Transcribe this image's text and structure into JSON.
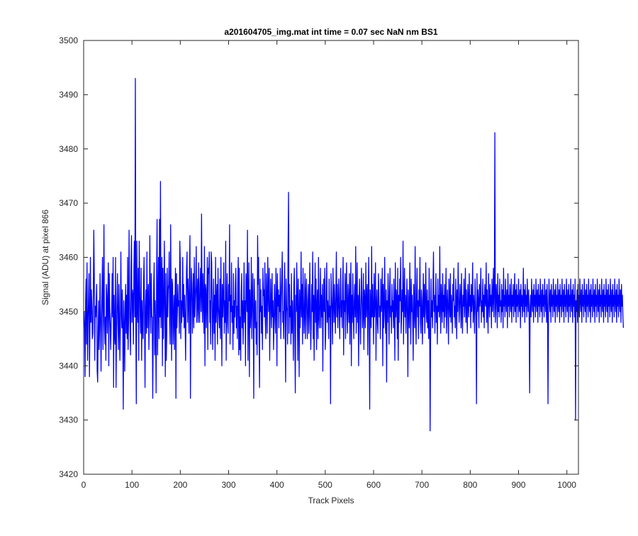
{
  "chart_data": {
    "type": "line",
    "title": "a201604705_img.mat int time = 0.07 sec  NaN nm BS1",
    "xlabel": "Track Pixels",
    "ylabel": "Signal (ADU) at pixel 866",
    "xlim": [
      0,
      1024
    ],
    "ylim": [
      3420,
      3500
    ],
    "xticks": [
      0,
      100,
      200,
      300,
      400,
      500,
      600,
      700,
      800,
      900,
      1000
    ],
    "yticks": [
      3420,
      3430,
      3440,
      3450,
      3460,
      3470,
      3480,
      3490,
      3500
    ],
    "grid": false,
    "legend": "none",
    "series": [
      {
        "color": "#0000ff",
        "x_start": 1,
        "values": [
          3450,
          3447,
          3438,
          3452,
          3456,
          3444,
          3459,
          3441,
          3448,
          3452,
          3457,
          3438,
          3447,
          3460,
          3448,
          3454,
          3451,
          3445,
          3446,
          3453,
          3465,
          3457,
          3441,
          3451,
          3449,
          3452,
          3455,
          3439,
          3437,
          3446,
          3452,
          3443,
          3447,
          3457,
          3449,
          3439,
          3448,
          3454,
          3460,
          3443,
          3451,
          3466,
          3448,
          3444,
          3449,
          3441,
          3455,
          3453,
          3446,
          3452,
          3459,
          3440,
          3457,
          3451,
          3447,
          3443,
          3448,
          3450,
          3457,
          3449,
          3460,
          3436,
          3453,
          3446,
          3444,
          3460,
          3436,
          3445,
          3452,
          3457,
          3448,
          3443,
          3455,
          3449,
          3441,
          3447,
          3461,
          3450,
          3447,
          3454,
          3446,
          3432,
          3452,
          3447,
          3439,
          3451,
          3455,
          3446,
          3453,
          3445,
          3460,
          3443,
          3448,
          3465,
          3452,
          3447,
          3442,
          3458,
          3464,
          3448,
          3454,
          3453,
          3444,
          3458,
          3463,
          3449,
          3493,
          3447,
          3433,
          3463,
          3451,
          3448,
          3458,
          3441,
          3463,
          3455,
          3449,
          3446,
          3458,
          3441,
          3452,
          3447,
          3445,
          3455,
          3460,
          3449,
          3436,
          3451,
          3454,
          3446,
          3461,
          3447,
          3452,
          3455,
          3443,
          3449,
          3464,
          3452,
          3446,
          3457,
          3449,
          3449,
          3434,
          3446,
          3455,
          3459,
          3442,
          3452,
          3447,
          3435,
          3457,
          3467,
          3442,
          3452,
          3460,
          3445,
          3467,
          3449,
          3474,
          3447,
          3453,
          3460,
          3440,
          3458,
          3445,
          3451,
          3463,
          3451,
          3438,
          3457,
          3441,
          3446,
          3458,
          3449,
          3454,
          3455,
          3461,
          3448,
          3444,
          3466,
          3452,
          3441,
          3456,
          3455,
          3444,
          3449,
          3453,
          3443,
          3451,
          3458,
          3434,
          3457,
          3447,
          3450,
          3455,
          3451,
          3452,
          3446,
          3463,
          3459,
          3445,
          3452,
          3448,
          3451,
          3460,
          3449,
          3455,
          3447,
          3453,
          3448,
          3441,
          3452,
          3458,
          3461,
          3448,
          3456,
          3452,
          3446,
          3458,
          3464,
          3434,
          3450,
          3458,
          3455,
          3446,
          3451,
          3457,
          3447,
          3460,
          3449,
          3452,
          3455,
          3462,
          3448,
          3452,
          3456,
          3448,
          3459,
          3451,
          3448,
          3455,
          3458,
          3450,
          3468,
          3453,
          3448,
          3457,
          3452,
          3446,
          3462,
          3440,
          3455,
          3454,
          3447,
          3453,
          3460,
          3443,
          3458,
          3457,
          3461,
          3448,
          3452,
          3444,
          3461,
          3459,
          3450,
          3443,
          3451,
          3456,
          3446,
          3453,
          3441,
          3460,
          3448,
          3452,
          3455,
          3444,
          3458,
          3451,
          3449,
          3447,
          3456,
          3445,
          3460,
          3451,
          3440,
          3455,
          3449,
          3453,
          3459,
          3446,
          3452,
          3448,
          3463,
          3441,
          3451,
          3457,
          3448,
          3446,
          3455,
          3452,
          3466,
          3444,
          3453,
          3450,
          3459,
          3448,
          3451,
          3443,
          3457,
          3446,
          3452,
          3449,
          3455,
          3458,
          3447,
          3451,
          3445,
          3456,
          3460,
          3442,
          3458,
          3443,
          3449,
          3441,
          3453,
          3457,
          3447,
          3452,
          3444,
          3450,
          3459,
          3448,
          3452,
          3440,
          3457,
          3455,
          3450,
          3465,
          3441,
          3452,
          3459,
          3438,
          3454,
          3447,
          3450,
          3460,
          3445,
          3452,
          3457,
          3449,
          3434,
          3456,
          3451,
          3447,
          3452,
          3444,
          3448,
          3442,
          3464,
          3455,
          3460,
          3445,
          3436,
          3456,
          3450,
          3454,
          3446,
          3451,
          3443,
          3458,
          3453,
          3454,
          3449,
          3459,
          3448,
          3445,
          3457,
          3452,
          3446,
          3460,
          3453,
          3450,
          3458,
          3441,
          3449,
          3456,
          3451,
          3447,
          3457,
          3449,
          3452,
          3443,
          3448,
          3455,
          3450,
          3446,
          3458,
          3453,
          3440,
          3457,
          3451,
          3454,
          3447,
          3453,
          3450,
          3458,
          3445,
          3452,
          3456,
          3461,
          3448,
          3450,
          3445,
          3453,
          3459,
          3448,
          3437,
          3456,
          3451,
          3450,
          3444,
          3461,
          3472,
          3446,
          3455,
          3449,
          3451,
          3444,
          3457,
          3446,
          3452,
          3448,
          3441,
          3455,
          3458,
          3446,
          3435,
          3453,
          3450,
          3459,
          3452,
          3441,
          3456,
          3450,
          3438,
          3454,
          3447,
          3451,
          3461,
          3449,
          3455,
          3444,
          3458,
          3452,
          3446,
          3450,
          3457,
          3445,
          3453,
          3456,
          3449,
          3445,
          3452,
          3455,
          3446,
          3449,
          3459,
          3452,
          3443,
          3447,
          3455,
          3450,
          3461,
          3445,
          3453,
          3441,
          3452,
          3459,
          3448,
          3456,
          3443,
          3451,
          3454,
          3445,
          3460,
          3449,
          3447,
          3452,
          3458,
          3447,
          3453,
          3449,
          3455,
          3439,
          3451,
          3456,
          3450,
          3458,
          3443,
          3446,
          3454,
          3459,
          3448,
          3452,
          3450,
          3445,
          3456,
          3449,
          3451,
          3433,
          3457,
          3453,
          3450,
          3444,
          3458,
          3452,
          3448,
          3455,
          3451,
          3446,
          3453,
          3461,
          3449,
          3455,
          3447,
          3451,
          3456,
          3450,
          3445,
          3453,
          3458,
          3449,
          3452,
          3447,
          3455,
          3460,
          3442,
          3452,
          3450,
          3457,
          3445,
          3453,
          3459,
          3450,
          3446,
          3455,
          3451,
          3448,
          3457,
          3444,
          3452,
          3459,
          3440,
          3453,
          3448,
          3457,
          3450,
          3445,
          3452,
          3455,
          3449,
          3462,
          3446,
          3451,
          3459,
          3448,
          3453,
          3440,
          3452,
          3456,
          3449,
          3444,
          3451,
          3458,
          3453,
          3447,
          3450,
          3457,
          3443,
          3454,
          3452,
          3447,
          3459,
          3449,
          3453,
          3455,
          3442,
          3452,
          3460,
          3448,
          3432,
          3454,
          3451,
          3447,
          3462,
          3449,
          3455,
          3450,
          3444,
          3457,
          3449,
          3452,
          3459,
          3441,
          3451,
          3454,
          3448,
          3446,
          3457,
          3453,
          3449,
          3451,
          3445,
          3456,
          3450,
          3452,
          3458,
          3440,
          3455,
          3447,
          3451,
          3460,
          3449,
          3446,
          3454,
          3437,
          3452,
          3448,
          3457,
          3453,
          3444,
          3452,
          3458,
          3449,
          3451,
          3446,
          3455,
          3450,
          3452,
          3447,
          3456,
          3451,
          3441,
          3459,
          3449,
          3454,
          3452,
          3445,
          3458,
          3441,
          3453,
          3448,
          3456,
          3452,
          3460,
          3446,
          3449,
          3454,
          3450,
          3463,
          3444,
          3452,
          3458,
          3449,
          3453,
          3446,
          3451,
          3456,
          3449,
          3438,
          3454,
          3451,
          3447,
          3459,
          3452,
          3444,
          3456,
          3450,
          3453,
          3448,
          3441,
          3455,
          3451,
          3447,
          3462,
          3450,
          3444,
          3453,
          3458,
          3449,
          3452,
          3445,
          3454,
          3451,
          3460,
          3448,
          3446,
          3454,
          3452,
          3444,
          3450,
          3457,
          3449,
          3455,
          3446,
          3452,
          3459,
          3450,
          3448,
          3454,
          3447,
          3452,
          3445,
          3458,
          3451,
          3428,
          3445,
          3456,
          3449,
          3452,
          3447,
          3455,
          3461,
          3450,
          3453,
          3446,
          3452,
          3457,
          3448,
          3451,
          3444,
          3456,
          3450,
          3453,
          3449,
          3462,
          3451,
          3446,
          3455,
          3452,
          3448,
          3457,
          3450,
          3453,
          3447,
          3455,
          3449,
          3452,
          3458,
          3446,
          3451,
          3454,
          3450,
          3444,
          3456,
          3452,
          3449,
          3457,
          3448,
          3453,
          3451,
          3446,
          3455,
          3452,
          3458,
          3449,
          3451,
          3447,
          3456,
          3452,
          3445,
          3454,
          3450,
          3459,
          3453,
          3448,
          3451,
          3455,
          3452,
          3447,
          3457,
          3450,
          3446,
          3453,
          3451,
          3456,
          3449,
          3452,
          3458,
          3448,
          3454,
          3450,
          3446,
          3455,
          3452,
          3449,
          3457,
          3451,
          3453,
          3447,
          3455,
          3450,
          3452,
          3459,
          3448,
          3453,
          3451,
          3446,
          3456,
          3452,
          3449,
          3433,
          3457,
          3450,
          3454,
          3452,
          3447,
          3455,
          3451,
          3453,
          3458,
          3448,
          3452,
          3450,
          3456,
          3449,
          3453,
          3447,
          3455,
          3452,
          3451,
          3459,
          3448,
          3454,
          3450,
          3446,
          3457,
          3452,
          3449,
          3455,
          3451,
          3453,
          3447,
          3456,
          3450,
          3452,
          3458,
          3449,
          3453,
          3483,
          3448,
          3451,
          3455,
          3452,
          3447,
          3457,
          3450,
          3453,
          3449,
          3456,
          3451,
          3452,
          3448,
          3455,
          3450,
          3454,
          3447,
          3458,
          3451,
          3453,
          3449,
          3456,
          3452,
          3450,
          3454,
          3447,
          3457,
          3451,
          3453,
          3449,
          3455,
          3452,
          3450,
          3456,
          3448,
          3453,
          3451,
          3455,
          3449,
          3452,
          3457,
          3450,
          3454,
          3448,
          3455,
          3451,
          3453,
          3449,
          3456,
          3452,
          3450,
          3454,
          3447,
          3455,
          3451,
          3453,
          3449,
          3452,
          3458,
          3450,
          3454,
          3448,
          3455,
          3451,
          3453,
          3449,
          3456,
          3452,
          3450,
          3454,
          3448,
          3435,
          3451,
          3453,
          3449,
          3456,
          3452,
          3450,
          3454,
          3448,
          3455,
          3451,
          3453,
          3449,
          3456,
          3452,
          3450,
          3454,
          3448,
          3455,
          3451,
          3453,
          3449,
          3456,
          3452,
          3450,
          3454,
          3448,
          3455,
          3451,
          3453,
          3449,
          3456,
          3452,
          3450,
          3454,
          3448,
          3455,
          3451,
          3433,
          3449,
          3456,
          3452,
          3450,
          3454,
          3448,
          3455,
          3451,
          3453,
          3449,
          3456,
          3452,
          3450,
          3454,
          3448,
          3455,
          3451,
          3453,
          3449,
          3456,
          3452,
          3450,
          3454,
          3448,
          3455,
          3451,
          3453,
          3449,
          3456,
          3452,
          3450,
          3454,
          3448,
          3455,
          3451,
          3453,
          3449,
          3456,
          3452,
          3450,
          3454,
          3448,
          3455,
          3451,
          3453,
          3449,
          3456,
          3452,
          3450,
          3454,
          3448,
          3455,
          3451,
          3453,
          3449,
          3456,
          3430,
          3452,
          3450,
          3454,
          3448,
          3455,
          3451,
          3453,
          3449,
          3456,
          3452,
          3450,
          3454,
          3448,
          3455,
          3451,
          3453,
          3449,
          3456,
          3452,
          3450,
          3454,
          3448,
          3455,
          3451,
          3453,
          3449,
          3456,
          3452,
          3450,
          3454,
          3448,
          3455,
          3451,
          3453,
          3449,
          3456,
          3452,
          3450,
          3454,
          3448,
          3455,
          3451,
          3453,
          3449,
          3456,
          3452,
          3450,
          3454,
          3448,
          3455,
          3451,
          3453,
          3449,
          3456,
          3452,
          3450,
          3454,
          3448,
          3455,
          3451,
          3453,
          3449,
          3456,
          3452,
          3450,
          3454,
          3448,
          3455,
          3451,
          3453,
          3449,
          3456,
          3452,
          3450,
          3454,
          3448,
          3455,
          3451,
          3453,
          3449,
          3456,
          3452,
          3450,
          3454,
          3448,
          3455,
          3451,
          3453,
          3449,
          3456,
          3452,
          3450,
          3454,
          3448,
          3455,
          3451,
          3453,
          3449,
          3447
        ]
      }
    ]
  }
}
